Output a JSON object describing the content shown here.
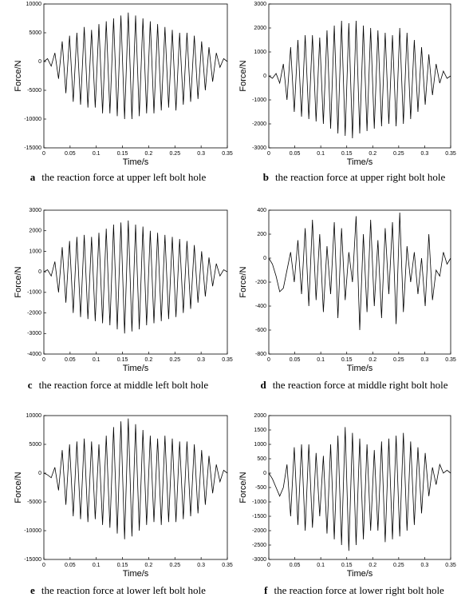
{
  "chart_data": [
    {
      "type": "line",
      "panel_label": "a",
      "caption": "the reaction force at upper left bolt hole",
      "xlabel": "Time/s",
      "ylabel": "Force/N",
      "color": "#000000",
      "x": [
        0,
        0.007,
        0.014,
        0.021,
        0.028,
        0.035,
        0.042,
        0.049,
        0.056,
        0.063,
        0.07,
        0.077,
        0.084,
        0.091,
        0.098,
        0.105,
        0.112,
        0.119,
        0.126,
        0.133,
        0.14,
        0.147,
        0.154,
        0.161,
        0.168,
        0.175,
        0.182,
        0.189,
        0.196,
        0.203,
        0.21,
        0.217,
        0.224,
        0.231,
        0.238,
        0.245,
        0.252,
        0.259,
        0.266,
        0.273,
        0.28,
        0.287,
        0.294,
        0.301,
        0.308,
        0.315,
        0.322,
        0.329,
        0.336,
        0.343,
        0.35
      ],
      "values": [
        0,
        500,
        -800,
        1500,
        -3000,
        3500,
        -5500,
        4500,
        -7000,
        5000,
        -7500,
        6000,
        -8000,
        5500,
        -8000,
        6500,
        -9000,
        7000,
        -9000,
        7500,
        -9500,
        8000,
        -10000,
        8500,
        -10000,
        8000,
        -9500,
        7500,
        -9000,
        7000,
        -9000,
        6500,
        -8500,
        6000,
        -8000,
        5500,
        -8500,
        5000,
        -7500,
        5000,
        -7000,
        4500,
        -6500,
        3500,
        -5000,
        2500,
        -3500,
        1500,
        -1000,
        500,
        0
      ],
      "xlim": [
        0,
        0.35
      ],
      "xticks": [
        0,
        0.05,
        0.1,
        0.15,
        0.2,
        0.25,
        0.3,
        0.35
      ],
      "ylim": [
        -15000,
        10000
      ],
      "yticks": [
        -15000,
        -10000,
        -5000,
        0,
        5000,
        10000
      ]
    },
    {
      "type": "line",
      "panel_label": "b",
      "caption": "the reaction force at upper right bolt hole",
      "xlabel": "Time/s",
      "ylabel": "Force/N",
      "color": "#000000",
      "x": [
        0,
        0.007,
        0.014,
        0.021,
        0.028,
        0.035,
        0.042,
        0.049,
        0.056,
        0.063,
        0.07,
        0.077,
        0.084,
        0.091,
        0.098,
        0.105,
        0.112,
        0.119,
        0.126,
        0.133,
        0.14,
        0.147,
        0.154,
        0.161,
        0.168,
        0.175,
        0.182,
        0.189,
        0.196,
        0.203,
        0.21,
        0.217,
        0.224,
        0.231,
        0.238,
        0.245,
        0.252,
        0.259,
        0.266,
        0.273,
        0.28,
        0.287,
        0.294,
        0.301,
        0.308,
        0.315,
        0.322,
        0.329,
        0.336,
        0.343,
        0.35
      ],
      "values": [
        0,
        -100,
        100,
        -300,
        500,
        -1000,
        1200,
        -1500,
        1500,
        -1700,
        1700,
        -1800,
        1700,
        -1900,
        1600,
        -2000,
        1900,
        -2200,
        2100,
        -2400,
        2300,
        -2500,
        2200,
        -2600,
        2300,
        -2400,
        2100,
        -2300,
        2000,
        -2200,
        1900,
        -2100,
        1800,
        -2000,
        1700,
        -2100,
        2000,
        -2000,
        1800,
        -1800,
        1500,
        -1500,
        1200,
        -1200,
        900,
        -800,
        500,
        -300,
        200,
        -100,
        0
      ],
      "xlim": [
        0,
        0.35
      ],
      "xticks": [
        0,
        0.05,
        0.1,
        0.15,
        0.2,
        0.25,
        0.3,
        0.35
      ],
      "ylim": [
        -3000,
        3000
      ],
      "yticks": [
        -3000,
        -2000,
        -1000,
        0,
        1000,
        2000,
        3000
      ]
    },
    {
      "type": "line",
      "panel_label": "c",
      "caption": "the reaction force at middle left bolt hole",
      "xlabel": "Time/s",
      "ylabel": "Force/N",
      "color": "#000000",
      "x": [
        0,
        0.007,
        0.014,
        0.021,
        0.028,
        0.035,
        0.042,
        0.049,
        0.056,
        0.063,
        0.07,
        0.077,
        0.084,
        0.091,
        0.098,
        0.105,
        0.112,
        0.119,
        0.126,
        0.133,
        0.14,
        0.147,
        0.154,
        0.161,
        0.168,
        0.175,
        0.182,
        0.189,
        0.196,
        0.203,
        0.21,
        0.217,
        0.224,
        0.231,
        0.238,
        0.245,
        0.252,
        0.259,
        0.266,
        0.273,
        0.28,
        0.287,
        0.294,
        0.301,
        0.308,
        0.315,
        0.322,
        0.329,
        0.336,
        0.343,
        0.35
      ],
      "values": [
        0,
        100,
        -200,
        500,
        -1000,
        1200,
        -1500,
        1500,
        -2000,
        1700,
        -2200,
        1800,
        -2300,
        1700,
        -2400,
        1900,
        -2500,
        2100,
        -2600,
        2300,
        -2800,
        2400,
        -3000,
        2500,
        -2900,
        2300,
        -2800,
        2200,
        -2600,
        2000,
        -2500,
        1900,
        -2400,
        1800,
        -2300,
        1700,
        -2200,
        1600,
        -2000,
        1500,
        -1800,
        1300,
        -1500,
        1000,
        -1200,
        700,
        -700,
        400,
        -200,
        100,
        0
      ],
      "xlim": [
        0,
        0.35
      ],
      "xticks": [
        0,
        0.05,
        0.1,
        0.15,
        0.2,
        0.25,
        0.3,
        0.35
      ],
      "ylim": [
        -4000,
        3000
      ],
      "yticks": [
        -4000,
        -3000,
        -2000,
        -1000,
        0,
        1000,
        2000,
        3000
      ]
    },
    {
      "type": "line",
      "panel_label": "d",
      "caption": "the reaction force at middle right bolt hole",
      "xlabel": "Time/s",
      "ylabel": "Force/N",
      "color": "#000000",
      "x": [
        0,
        0.007,
        0.014,
        0.021,
        0.028,
        0.035,
        0.042,
        0.049,
        0.056,
        0.063,
        0.07,
        0.077,
        0.084,
        0.091,
        0.098,
        0.105,
        0.112,
        0.119,
        0.126,
        0.133,
        0.14,
        0.147,
        0.154,
        0.161,
        0.168,
        0.175,
        0.182,
        0.189,
        0.196,
        0.203,
        0.21,
        0.217,
        0.224,
        0.231,
        0.238,
        0.245,
        0.252,
        0.259,
        0.266,
        0.273,
        0.28,
        0.287,
        0.294,
        0.301,
        0.308,
        0.315,
        0.322,
        0.329,
        0.336,
        0.343,
        0.35
      ],
      "values": [
        0,
        -50,
        -150,
        -280,
        -250,
        -100,
        50,
        -200,
        150,
        -300,
        250,
        -400,
        320,
        -350,
        200,
        -450,
        100,
        -300,
        300,
        -500,
        250,
        -350,
        50,
        -200,
        350,
        -600,
        200,
        -450,
        320,
        -400,
        150,
        -500,
        250,
        -300,
        300,
        -550,
        380,
        -450,
        100,
        -200,
        50,
        -300,
        0,
        -400,
        200,
        -350,
        -100,
        -150,
        50,
        -50,
        0
      ],
      "xlim": [
        0,
        0.35
      ],
      "xticks": [
        0,
        0.05,
        0.1,
        0.15,
        0.2,
        0.25,
        0.3,
        0.35
      ],
      "ylim": [
        -800,
        400
      ],
      "yticks": [
        -800,
        -600,
        -400,
        -200,
        0,
        200,
        400
      ]
    },
    {
      "type": "line",
      "panel_label": "e",
      "caption": "the reaction force at lower left bolt hole",
      "xlabel": "Time/s",
      "ylabel": "Force/N",
      "color": "#000000",
      "x": [
        0,
        0.007,
        0.014,
        0.021,
        0.028,
        0.035,
        0.042,
        0.049,
        0.056,
        0.063,
        0.07,
        0.077,
        0.084,
        0.091,
        0.098,
        0.105,
        0.112,
        0.119,
        0.126,
        0.133,
        0.14,
        0.147,
        0.154,
        0.161,
        0.168,
        0.175,
        0.182,
        0.189,
        0.196,
        0.203,
        0.21,
        0.217,
        0.224,
        0.231,
        0.238,
        0.245,
        0.252,
        0.259,
        0.266,
        0.273,
        0.28,
        0.287,
        0.294,
        0.301,
        0.308,
        0.315,
        0.322,
        0.329,
        0.336,
        0.343,
        0.35
      ],
      "values": [
        0,
        -300,
        -800,
        1000,
        -3000,
        4000,
        -5500,
        5000,
        -7500,
        5500,
        -8000,
        6000,
        -8500,
        5500,
        -8000,
        5000,
        -9000,
        6500,
        -9500,
        8000,
        -10500,
        9000,
        -11500,
        9500,
        -11000,
        8500,
        -10000,
        7500,
        -9000,
        6500,
        -8500,
        6000,
        -9000,
        6500,
        -8500,
        6000,
        -8500,
        5500,
        -8000,
        5500,
        -7500,
        5000,
        -7000,
        4000,
        -5500,
        3000,
        -3500,
        1500,
        -1500,
        500,
        0
      ],
      "xlim": [
        0,
        0.35
      ],
      "xticks": [
        0,
        0.05,
        0.1,
        0.15,
        0.2,
        0.25,
        0.3,
        0.35
      ],
      "ylim": [
        -15000,
        10000
      ],
      "yticks": [
        -15000,
        -10000,
        -5000,
        0,
        5000,
        10000
      ]
    },
    {
      "type": "line",
      "panel_label": "f",
      "caption": "the reaction force at lower right bolt hole",
      "xlabel": "Time/s",
      "ylabel": "Force/N",
      "color": "#000000",
      "x": [
        0,
        0.007,
        0.014,
        0.021,
        0.028,
        0.035,
        0.042,
        0.049,
        0.056,
        0.063,
        0.07,
        0.077,
        0.084,
        0.091,
        0.098,
        0.105,
        0.112,
        0.119,
        0.126,
        0.133,
        0.14,
        0.147,
        0.154,
        0.161,
        0.168,
        0.175,
        0.182,
        0.189,
        0.196,
        0.203,
        0.21,
        0.217,
        0.224,
        0.231,
        0.238,
        0.245,
        0.252,
        0.259,
        0.266,
        0.273,
        0.28,
        0.287,
        0.294,
        0.301,
        0.308,
        0.315,
        0.322,
        0.329,
        0.336,
        0.343,
        0.35
      ],
      "values": [
        0,
        -200,
        -500,
        -800,
        -500,
        300,
        -1500,
        900,
        -1800,
        1000,
        -2000,
        1000,
        -1900,
        700,
        -1500,
        600,
        -2100,
        1000,
        -2300,
        1300,
        -2500,
        1600,
        -2700,
        1400,
        -2500,
        1200,
        -2300,
        1000,
        -2000,
        800,
        -2000,
        1100,
        -2400,
        1200,
        -2300,
        1300,
        -2200,
        1400,
        -2000,
        1100,
        -1800,
        900,
        -1400,
        700,
        -800,
        200,
        -400,
        300,
        0,
        100,
        0
      ],
      "xlim": [
        0,
        0.35
      ],
      "xticks": [
        0,
        0.05,
        0.1,
        0.15,
        0.2,
        0.25,
        0.3,
        0.35
      ],
      "ylim": [
        -3000,
        2000
      ],
      "yticks": [
        -3000,
        -2500,
        -2000,
        -1500,
        -1000,
        -500,
        0,
        500,
        1000,
        1500,
        2000
      ]
    }
  ]
}
